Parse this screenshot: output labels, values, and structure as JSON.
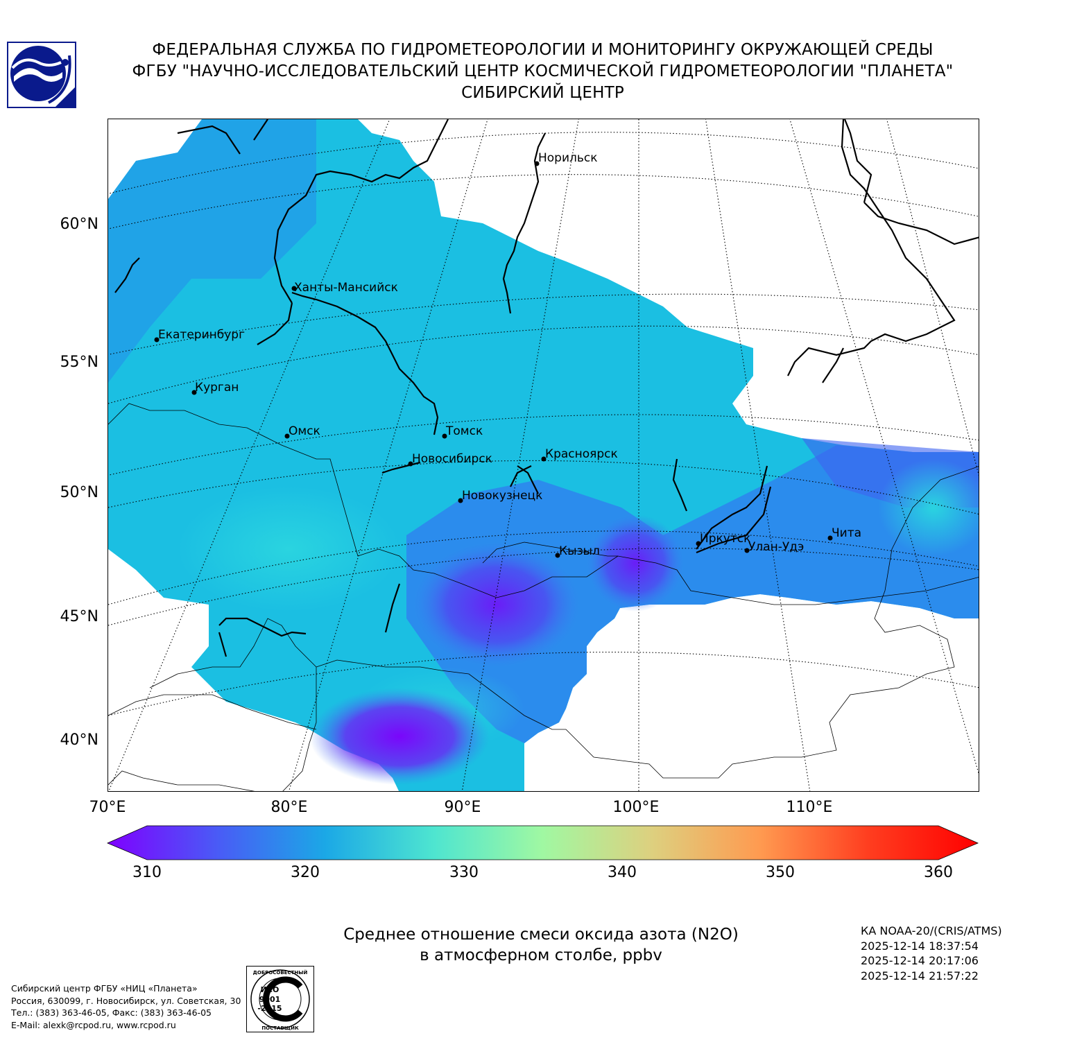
{
  "header": {
    "line1": "ФЕДЕРАЛЬНАЯ СЛУЖБА ПО ГИДРОМЕТЕОРОЛОГИИ И МОНИТОРИНГУ ОКРУЖАЮЩЕЙ СРЕДЫ",
    "line2": "ФГБУ \"НАУЧНО-ИССЛЕДОВАТЕЛЬСКИЙ ЦЕНТР КОСМИЧЕСКОЙ ГИДРОМЕТЕОРОЛОГИИ \"ПЛАНЕТА\"",
    "line3": "СИБИРСКИЙ ЦЕНТР"
  },
  "map": {
    "lat_labels": [
      "60°N",
      "55°N",
      "50°N",
      "45°N",
      "40°N"
    ],
    "lon_labels": [
      "70°E",
      "80°E",
      "90°E",
      "100°E",
      "110°E"
    ],
    "cities": [
      "Норильск",
      "Ханты-Мансийск",
      "Екатеринбург",
      "Курган",
      "Омск",
      "Томск",
      "Новосибирск",
      "Красноярск",
      "Новокузнецк",
      "Кызыл",
      "Иркутск",
      "Улан-Удэ",
      "Чита"
    ]
  },
  "colorbar": {
    "min": 310,
    "max": 360,
    "ticks": [
      "310",
      "320",
      "330",
      "340",
      "350",
      "360"
    ],
    "colors": [
      "#7f00ff",
      "#4a5af6",
      "#1ba8e6",
      "#4ee5d0",
      "#a0f8a2",
      "#ddd07f",
      "#ff9a50",
      "#ff3d1f",
      "#ff0000"
    ]
  },
  "caption": {
    "line1": "Среднее отношение смеси оксида азота (N2O)",
    "line2": "в атмосферном столбе, ppbv"
  },
  "satellite": {
    "name": "КА NOAA-20/(CRIS/ATMS)",
    "times": [
      "2025-12-14 18:37:54",
      "2025-12-14 20:17:06",
      "2025-12-14 21:57:22"
    ]
  },
  "footer": {
    "line1": "Сибирский центр ФГБУ «НИЦ «Планета»",
    "line2": "Россия, 630099, г. Новосибирск, ул. Советская, 30",
    "line3": "Тел.: (383) 363-46-05, Факс: (383) 363-46-05",
    "line4": "E-Mail: alexk@rcpod.ru, www.rcpod.ru"
  },
  "iso_badge": {
    "top_text": "ДОБРОСОВЕСТНЫЙ",
    "iso": "ИСО",
    "num": "9001",
    "year": "-2015",
    "bottom_text": "ПОСТАВЩИК"
  }
}
